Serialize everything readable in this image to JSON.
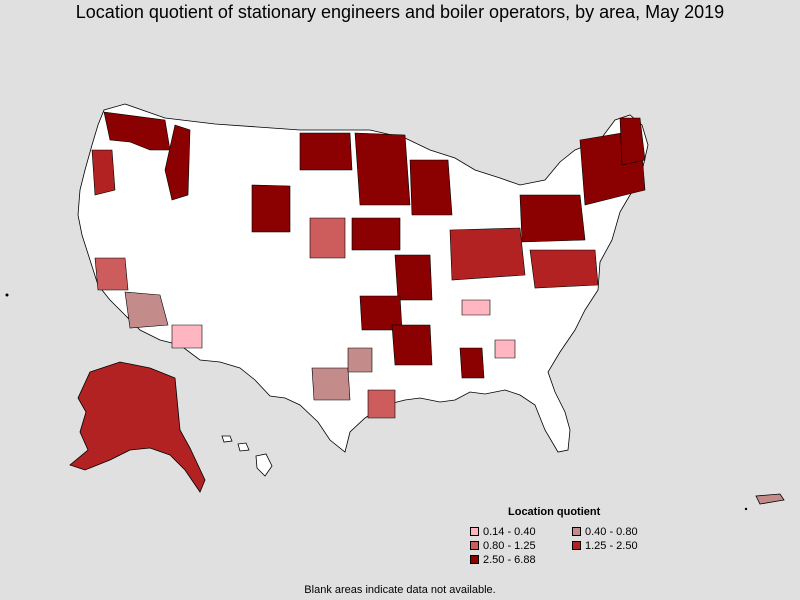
{
  "title": "Location quotient of stationary engineers and boiler operators, by area, May 2019",
  "legend": {
    "title": "Location quotient",
    "items": [
      {
        "label": "0.14 - 0.40",
        "color": "#ffb6c1"
      },
      {
        "label": "0.40 - 0.80",
        "color": "#c48b8b"
      },
      {
        "label": "0.80 - 1.25",
        "color": "#cd5c5c"
      },
      {
        "label": "1.25 - 2.50",
        "color": "#b22222"
      },
      {
        "label": "2.50 - 6.88",
        "color": "#8b0000"
      }
    ]
  },
  "footnote": "Blank areas indicate data not available.",
  "colors": {
    "background": "#e0e0e0",
    "land": "#ffffff",
    "border": "#000000"
  }
}
